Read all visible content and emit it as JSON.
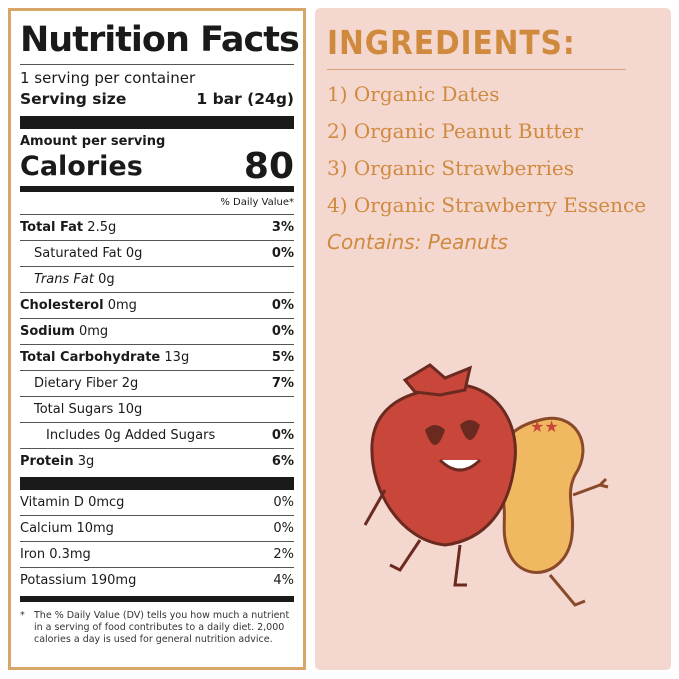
{
  "nutrition": {
    "title": "Nutrition Facts",
    "servings": "1 serving per container",
    "serving_size_label": "Serving size",
    "serving_size_value": "1 bar (24g)",
    "amount_per_serving": "Amount per serving",
    "calories_label": "Calories",
    "calories_value": "80",
    "dv_header": "% Daily Value*",
    "rows": [
      {
        "name": "Total Fat",
        "amount": "2.5g",
        "dv": "3%"
      },
      {
        "name": "Saturated Fat",
        "amount": "0g",
        "dv": "0%"
      },
      {
        "name": "Trans Fat",
        "amount": "0g",
        "dv": ""
      },
      {
        "name": "Cholesterol",
        "amount": "0mg",
        "dv": "0%"
      },
      {
        "name": "Sodium",
        "amount": "0mg",
        "dv": "0%"
      },
      {
        "name": "Total Carbohydrate",
        "amount": "13g",
        "dv": "5%"
      },
      {
        "name": "Dietary Fiber",
        "amount": "2g",
        "dv": "7%"
      },
      {
        "name": "Total Sugars",
        "amount": "10g",
        "dv": ""
      },
      {
        "name": "Includes 0g Added Sugars",
        "amount": "",
        "dv": "0%"
      },
      {
        "name": "Protein",
        "amount": "3g",
        "dv": "6%"
      }
    ],
    "vitamins": [
      {
        "name": "Vitamin D 0mcg",
        "dv": "0%"
      },
      {
        "name": "Calcium 10mg",
        "dv": "0%"
      },
      {
        "name": "Iron 0.3mg",
        "dv": "2%"
      },
      {
        "name": "Potassium 190mg",
        "dv": "4%"
      }
    ],
    "footnote_star": "*",
    "footnote": "The % Daily Value (DV) tells you how much a nutrient in a serving of food contributes to a daily diet. 2,000 calories a day is used for general nutrition advice."
  },
  "ingredients": {
    "heading": "INGREDIENTS:",
    "items": [
      "1) Organic Dates",
      "2) Organic Peanut Butter",
      "3) Organic Strawberries",
      "4) Organic Strawberry Essence"
    ],
    "contains": "Contains: Peanuts"
  },
  "colors": {
    "border": "#d9a66a",
    "panel": "#f4d7cf",
    "accent": "#d08a3e",
    "strawberry": "#c8463a",
    "peanut": "#f0b860"
  }
}
